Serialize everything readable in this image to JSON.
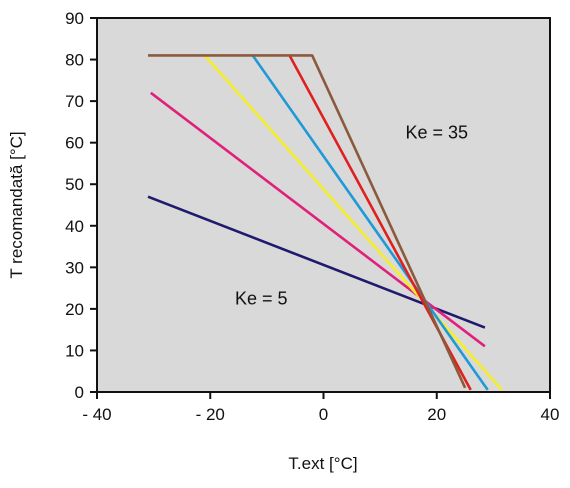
{
  "chart_data": {
    "type": "line",
    "xlabel": "T.ext [°C]",
    "ylabel": "T recomandată [°C]",
    "xlim": [
      -40,
      40
    ],
    "ylim": [
      0,
      90
    ],
    "x_ticks": [
      {
        "value": -40,
        "label": "- 40"
      },
      {
        "value": -20,
        "label": "- 20"
      },
      {
        "value": 0,
        "label": "0"
      },
      {
        "value": 20,
        "label": "20"
      },
      {
        "value": 40,
        "label": "40"
      }
    ],
    "y_ticks": [
      {
        "value": 0,
        "label": "0"
      },
      {
        "value": 10,
        "label": "10"
      },
      {
        "value": 20,
        "label": "20"
      },
      {
        "value": 30,
        "label": "30"
      },
      {
        "value": 40,
        "label": "40"
      },
      {
        "value": 50,
        "label": "50"
      },
      {
        "value": 60,
        "label": "60"
      },
      {
        "value": 70,
        "label": "70"
      },
      {
        "value": 80,
        "label": "80"
      },
      {
        "value": 90,
        "label": "90"
      }
    ],
    "grid": false,
    "background": "#d9d9d9",
    "series": [
      {
        "color": "#1f1a6e",
        "points": [
          [
            -31,
            47
          ],
          [
            28.5,
            15.5
          ]
        ]
      },
      {
        "color": "#e0207a",
        "points": [
          [
            -30.5,
            72
          ],
          [
            28.5,
            11
          ]
        ]
      },
      {
        "color": "#f5ee2a",
        "points": [
          [
            -21,
            81
          ],
          [
            31.5,
            0.5
          ]
        ]
      },
      {
        "color": "#1f9ad6",
        "points": [
          [
            -12.5,
            81
          ],
          [
            29,
            0.5
          ]
        ]
      },
      {
        "color": "#e02020",
        "points": [
          [
            -6,
            81
          ],
          [
            26,
            0.5
          ]
        ]
      },
      {
        "color": "#8b5a3c",
        "points": [
          [
            -31,
            81
          ],
          [
            -2,
            81
          ],
          [
            25,
            1
          ]
        ]
      }
    ],
    "annotations": [
      {
        "text": "Ke = 35",
        "x": 20,
        "y": 61
      },
      {
        "text": "Ke = 5",
        "x": -11,
        "y": 21
      }
    ]
  }
}
